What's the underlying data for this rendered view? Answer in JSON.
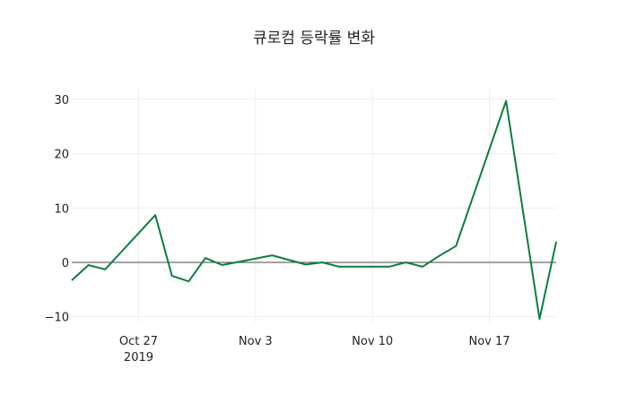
{
  "chart_data": {
    "type": "line",
    "title": "큐로컴 등락률 변화",
    "xlabel": "",
    "ylabel": "",
    "x": [
      "2019-10-23",
      "2019-10-24",
      "2019-10-25",
      "2019-10-28",
      "2019-10-29",
      "2019-10-30",
      "2019-10-31",
      "2019-11-01",
      "2019-11-04",
      "2019-11-06",
      "2019-11-07",
      "2019-11-08",
      "2019-11-11",
      "2019-11-12",
      "2019-11-13",
      "2019-11-14",
      "2019-11-15",
      "2019-11-18",
      "2019-11-20",
      "2019-11-21"
    ],
    "series": [
      {
        "name": "등락률",
        "color": "#0a7d3f",
        "values": [
          -3.3,
          -0.5,
          -1.3,
          8.7,
          -2.5,
          -3.5,
          0.8,
          -0.5,
          1.3,
          -0.4,
          0.0,
          -0.8,
          -0.8,
          0.0,
          -0.8,
          1.2,
          3.0,
          29.7,
          -10.4,
          3.8
        ]
      }
    ],
    "ylim": [
      -11.05,
      31.8
    ],
    "xlim": [
      "2019-10-23",
      "2019-11-21"
    ],
    "yticks": [
      -10,
      0,
      10,
      20,
      30
    ],
    "ytick_labels": [
      "−10",
      "0",
      "10",
      "20",
      "30"
    ],
    "xticks": [
      "2019-10-27",
      "2019-11-03",
      "2019-11-10",
      "2019-11-17"
    ],
    "xtick_labels": [
      [
        "Oct 27",
        "2019"
      ],
      [
        "Nov 3"
      ],
      [
        "Nov 10"
      ],
      [
        "Nov 17"
      ]
    ],
    "grid": true,
    "zeroline": true,
    "legend": false
  }
}
